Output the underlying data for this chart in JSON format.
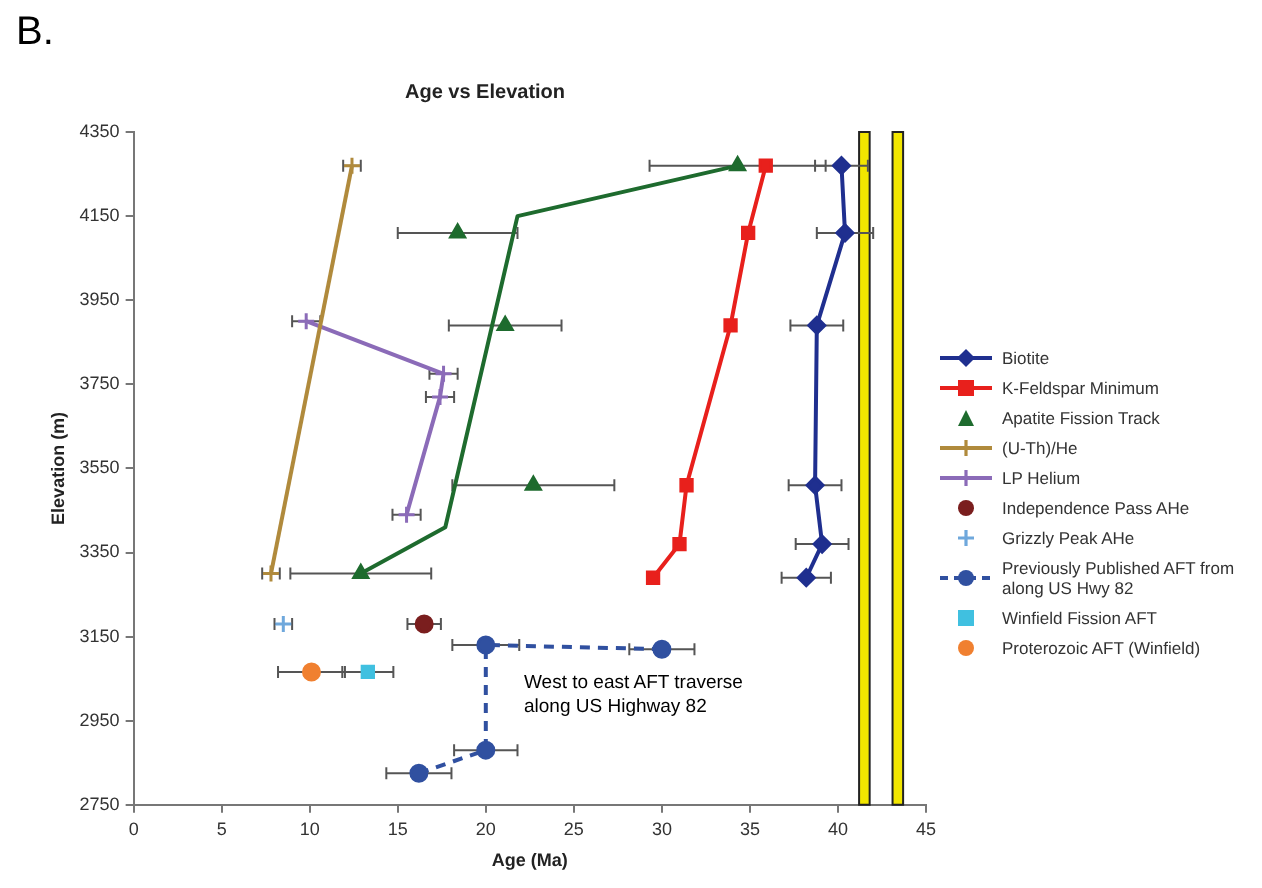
{
  "chart_data": {
    "type": "line",
    "title": "Age vs Elevation",
    "xlabel": "Age (Ma)",
    "ylabel": "Elevation (m)",
    "annotations": [
      "B.",
      "West to east AFT traverse\nalong US Highway 82"
    ],
    "xlim": [
      0,
      45
    ],
    "xticks": [
      0,
      5,
      10,
      15,
      20,
      25,
      30,
      35,
      40,
      45
    ],
    "ylim": [
      2750,
      4350
    ],
    "yticks": [
      2750,
      2950,
      3150,
      3350,
      3550,
      3750,
      3950,
      4150,
      4350
    ],
    "grid": false,
    "legend": "right",
    "bands": [
      {
        "axis": "x",
        "from": 41.2,
        "to": 41.8,
        "color": "#f2e600"
      },
      {
        "axis": "x",
        "from": 43.1,
        "to": 43.7,
        "color": "#f2e600"
      }
    ],
    "series": [
      {
        "name": "Biotite",
        "type": "line",
        "marker": "diamond",
        "color": "#1f2f8f",
        "x": [
          40.2,
          40.4,
          38.8,
          38.7,
          39.1,
          38.2
        ],
        "values": [
          4270,
          4110,
          3890,
          3510,
          3370,
          3290
        ],
        "xerrors": [
          1.5,
          1.6,
          1.5,
          1.5,
          1.5,
          1.4
        ]
      },
      {
        "name": "K-Feldspar Minimum",
        "type": "line",
        "marker": "square",
        "color": "#e8201c",
        "x": [
          35.9,
          34.9,
          33.9,
          31.4,
          31.0,
          29.5
        ],
        "values": [
          4270,
          4110,
          3890,
          3510,
          3370,
          3290
        ]
      },
      {
        "name": "Apatite Fission Track",
        "type": "scatter",
        "marker": "triangle",
        "color": "#1e6b2e",
        "x": [
          34.3,
          18.4,
          21.1,
          22.7,
          12.9
        ],
        "values": [
          4270,
          4110,
          3890,
          3510,
          3300
        ],
        "xerrors": [
          5,
          3.4,
          3.2,
          4.6,
          4
        ]
      },
      {
        "type": "line",
        "marker": "none",
        "color": "#1e6b2e",
        "x": [
          34.3,
          21.8,
          17.7,
          12.9
        ],
        "values": [
          4270,
          4150,
          3410,
          3300
        ]
      },
      {
        "name": "(U-Th)/He",
        "type": "line",
        "marker": "cross",
        "color": "#b08a3c",
        "x": [
          12.4,
          7.8
        ],
        "values": [
          4270,
          3300
        ],
        "xerrors": [
          0.5,
          0.5
        ]
      },
      {
        "name": "LP Helium",
        "type": "line",
        "marker": "cross",
        "color": "#8b6bb8",
        "x": [
          9.8,
          17.6,
          17.4,
          15.5
        ],
        "values": [
          3900,
          3775,
          3720,
          3440
        ],
        "xerrors": [
          0.8,
          0.8,
          0.8,
          0.8
        ]
      },
      {
        "name": "Independence Pass AHe",
        "type": "scatter",
        "marker": "circle",
        "color": "#7a1e1e",
        "x": [
          16.5
        ],
        "values": [
          3180
        ],
        "xerrors": [
          0.95
        ]
      },
      {
        "name": "Grizzly Peak AHe",
        "type": "scatter",
        "marker": "cross",
        "color": "#6fa8dc",
        "x": [
          8.5
        ],
        "values": [
          3180
        ],
        "xerrors": [
          0.5
        ]
      },
      {
        "name": "Previously Published AFT from along US Hwy 82",
        "type": "line",
        "marker": "circle",
        "line_style": "dashed",
        "color": "#3050a0",
        "x": [
          30.0,
          20.0,
          20.0,
          16.2
        ],
        "values": [
          3120,
          3130,
          2880,
          2825
        ],
        "xerrors": [
          1.85,
          1.9,
          1.8,
          1.85
        ]
      },
      {
        "name": "Winfield Fission AFT",
        "type": "scatter",
        "marker": "square",
        "color": "#40c0e0",
        "x": [
          13.3
        ],
        "values": [
          3066
        ],
        "xerrors": [
          1.45
        ]
      },
      {
        "name": "Proterozoic AFT (Winfield)",
        "type": "scatter",
        "marker": "circle",
        "color": "#f08030",
        "x": [
          10.1
        ],
        "values": [
          3066
        ],
        "xerrors": [
          1.9
        ]
      }
    ]
  }
}
